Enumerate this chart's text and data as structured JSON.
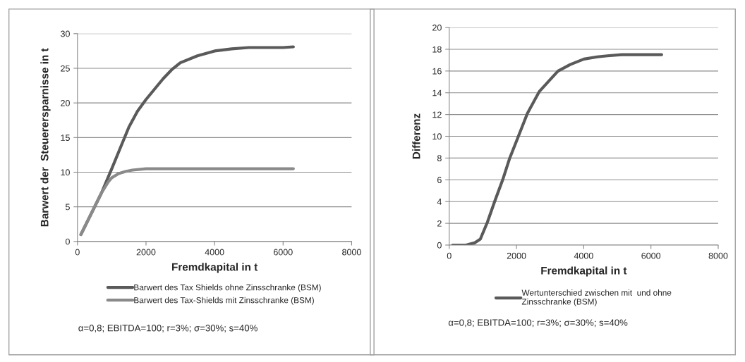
{
  "chart_data": [
    {
      "type": "line",
      "xlabel": "Fremdkapital in t",
      "ylabel": "Barwert der  Steuerersparnisse in t",
      "xlim": [
        0,
        8000
      ],
      "xticks": [
        0,
        2000,
        4000,
        6000,
        8000
      ],
      "ylim": [
        0,
        30
      ],
      "yticks": [
        0,
        5,
        10,
        15,
        20,
        25,
        30
      ],
      "grid": "y",
      "legend": "bottom",
      "marker": "none",
      "line_style": "solid",
      "series": [
        {
          "name": "Barwert des Tax Shields ohne Zinsschranke (BSM)",
          "color": "#5a5a5a",
          "x": [
            100,
            400,
            700,
            1000,
            1250,
            1500,
            1750,
            2000,
            2250,
            2500,
            2750,
            3000,
            3500,
            4000,
            4500,
            5000,
            5500,
            6000,
            6300
          ],
          "values": [
            1.0,
            4.0,
            7.0,
            10.5,
            13.5,
            16.5,
            18.8,
            20.5,
            22.0,
            23.5,
            24.8,
            25.8,
            26.8,
            27.5,
            27.8,
            28.0,
            28.0,
            28.0,
            28.1
          ]
        },
        {
          "name": "Barwert des Tax-Shields mit Zinsschranke (BSM)",
          "color": "#8a8a8a",
          "x": [
            100,
            400,
            700,
            900,
            1000,
            1200,
            1400,
            1600,
            2000,
            3000,
            4000,
            5000,
            6000,
            6300
          ],
          "values": [
            1.0,
            4.0,
            7.0,
            8.6,
            9.2,
            9.8,
            10.1,
            10.3,
            10.5,
            10.5,
            10.5,
            10.5,
            10.5,
            10.5
          ]
        }
      ],
      "annotations": [
        "α=0,8; EBITDA=100; r=3%; σ=30%; s=40%"
      ]
    },
    {
      "type": "line",
      "xlabel": "Fremdkapital in t",
      "ylabel": "Differenz",
      "xlim": [
        0,
        8000
      ],
      "xticks": [
        0,
        2000,
        4000,
        6000,
        8000
      ],
      "ylim": [
        0,
        20
      ],
      "yticks": [
        0,
        2,
        4,
        6,
        8,
        10,
        12,
        14,
        16,
        18,
        20
      ],
      "grid": "y",
      "legend": "bottom",
      "marker": "none",
      "line_style": "solid",
      "series": [
        {
          "name": "Wertunterschied zwischen mit  und ohne Zinsschranke (BSM)",
          "color": "#5a5a5a",
          "x": [
            100,
            500,
            750,
            925,
            1135,
            1350,
            1590,
            1800,
            2045,
            2325,
            2676,
            3000,
            3236,
            3600,
            4007,
            4400,
            4707,
            5128,
            5700,
            6319
          ],
          "values": [
            0,
            0,
            0.2,
            0.55,
            2.1,
            4.0,
            6.0,
            8.0,
            9.9,
            12.1,
            14.1,
            15.2,
            16.0,
            16.6,
            17.1,
            17.3,
            17.4,
            17.5,
            17.5,
            17.5
          ]
        }
      ],
      "annotations": [
        "α=0,8; EBITDA=100; r=3%; σ=30%; s=40%"
      ]
    }
  ]
}
